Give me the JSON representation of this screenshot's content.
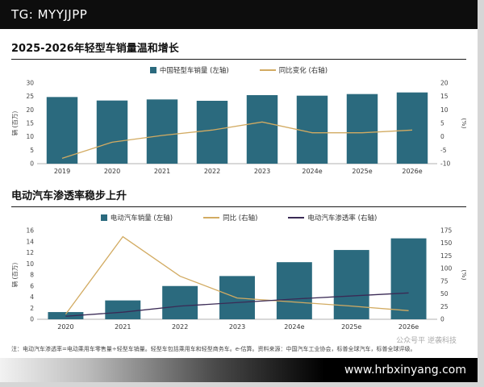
{
  "top_bar": {
    "text": "TG: MYYJJPP"
  },
  "bottom_bar": {
    "text": "www.hrbxinyang.com"
  },
  "watermark": "公众号平 逆袭科技",
  "footnote": "注：电动汽车渗透率=电动乘用车零售量÷轻型车销量。轻型车包括乘用车和轻型商务车。e-估算。资料来源：中国汽车工业协会，标普全球汽车，标普全球评级。",
  "colors": {
    "bar_teal": "#2b6a7e",
    "line_gold": "#d2ab62",
    "line_purple": "#3a2a55",
    "banner_black": "#0d0d0d"
  },
  "chart_data": [
    {
      "type": "bar",
      "title": "2025-2026年轻型车销量温和增长",
      "categories": [
        "2019",
        "2020",
        "2021",
        "2022",
        "2023",
        "2024e",
        "2025e",
        "2026e"
      ],
      "series": [
        {
          "name": "中国轻型车销量 (左轴)",
          "type": "bar",
          "axis": "left",
          "color": "#2b6a7e",
          "values": [
            24.8,
            23.5,
            23.9,
            23.4,
            25.5,
            25.3,
            25.9,
            26.5
          ]
        },
        {
          "name": "同比变化 (右轴)",
          "type": "line",
          "axis": "right",
          "color": "#d2ab62",
          "values": [
            -8,
            -2,
            0.5,
            2.5,
            5.5,
            1.5,
            1.5,
            2.5
          ]
        }
      ],
      "left_axis": {
        "label": "辆 (百万)",
        "min": 0,
        "max": 30,
        "step": 5
      },
      "right_axis": {
        "label": "(%)",
        "min": -10,
        "max": 20,
        "step": 5
      },
      "grid": false,
      "legend_position": "top"
    },
    {
      "type": "bar",
      "title": "电动汽车渗透率稳步上升",
      "categories": [
        "2020",
        "2021",
        "2022",
        "2023",
        "2024e",
        "2025e",
        "2026e"
      ],
      "series": [
        {
          "name": "电动汽车销量 (左轴)",
          "type": "bar",
          "axis": "left",
          "color": "#2b6a7e",
          "values": [
            1.3,
            3.4,
            6.0,
            7.8,
            10.3,
            12.5,
            14.6
          ]
        },
        {
          "name": "同比 (右轴)",
          "type": "line",
          "axis": "right",
          "color": "#d2ab62",
          "values": [
            10,
            163,
            85,
            42,
            34,
            26,
            17
          ]
        },
        {
          "name": "电动汽车渗透率 (右轴)",
          "type": "line",
          "axis": "right",
          "color": "#3a2a55",
          "values": [
            6,
            14,
            26,
            33,
            40,
            46,
            52
          ]
        }
      ],
      "left_axis": {
        "label": "辆 (百万)",
        "min": 0,
        "max": 16,
        "step": 2
      },
      "right_axis": {
        "label": "(%)",
        "min": 0,
        "max": 175,
        "step": 25
      },
      "grid": false,
      "legend_position": "top"
    }
  ]
}
